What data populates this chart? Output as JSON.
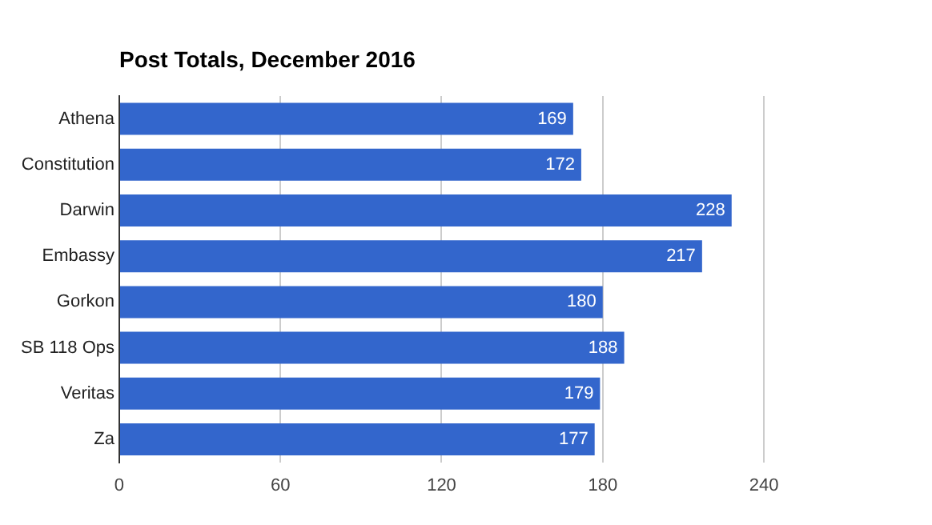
{
  "chart_data": {
    "type": "bar",
    "orientation": "horizontal",
    "title": "Post Totals, December 2016",
    "categories": [
      "Athena",
      "Constitution",
      "Darwin",
      "Embassy",
      "Gorkon",
      "SB 118 Ops",
      "Veritas",
      "Za"
    ],
    "values": [
      169,
      172,
      228,
      217,
      180,
      188,
      179,
      177
    ],
    "color": "#3366cc",
    "xlim": [
      0,
      240
    ],
    "xticks": [
      0,
      60,
      120,
      180,
      240
    ],
    "grid": "x",
    "data_labels": true
  }
}
